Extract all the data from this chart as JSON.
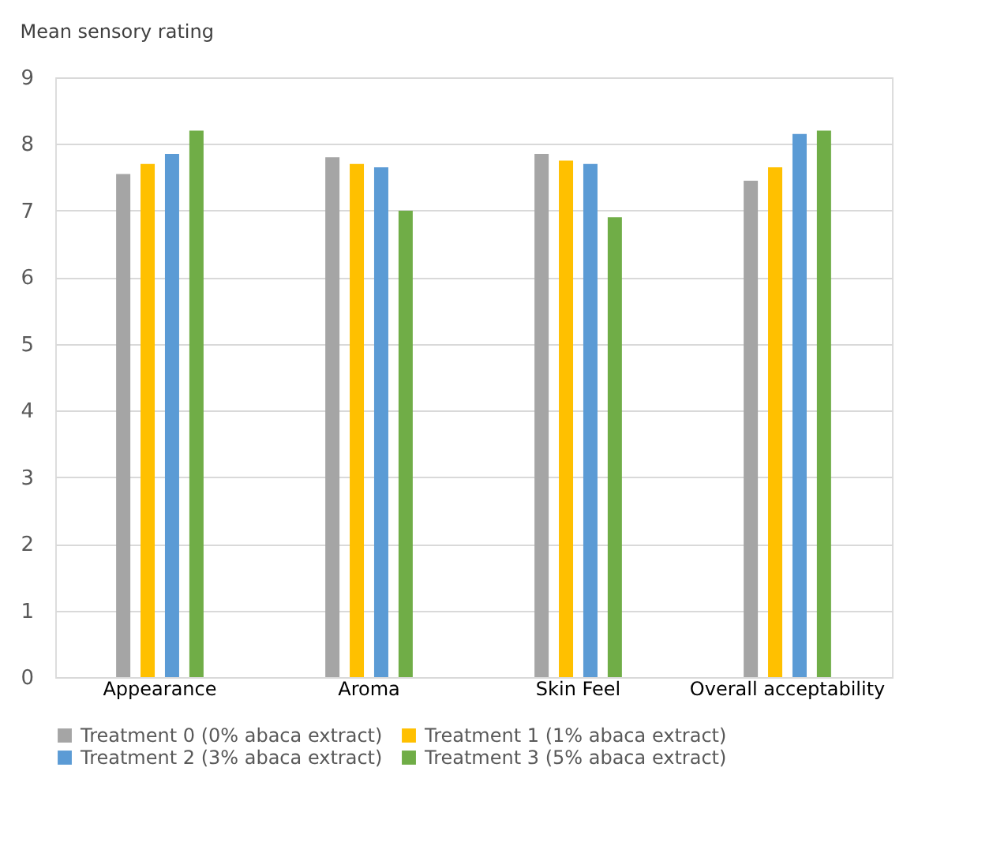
{
  "chart_data": {
    "type": "bar",
    "title": "Mean sensory rating",
    "categories": [
      "Appearance",
      "Aroma",
      "Skin Feel",
      "Overall acceptability"
    ],
    "series": [
      {
        "name": "Treatment 0 (0% abaca extract)",
        "color": "#a5a5a5",
        "values": [
          7.55,
          7.8,
          7.85,
          7.45
        ]
      },
      {
        "name": "Treatment 1 (1% abaca extract)",
        "color": "#ffc000",
        "values": [
          7.7,
          7.7,
          7.75,
          7.65
        ]
      },
      {
        "name": "Treatment 2 (3% abaca extract)",
        "color": "#5b9bd5",
        "values": [
          7.85,
          7.65,
          7.7,
          8.15
        ]
      },
      {
        "name": "Treatment 3 (5% abaca extract)",
        "color": "#70ad47",
        "values": [
          8.2,
          7.0,
          6.9,
          8.2
        ]
      }
    ],
    "ylim": [
      0,
      9
    ],
    "yticks": [
      0,
      1,
      2,
      3,
      4,
      5,
      6,
      7,
      8,
      9
    ],
    "grid": "y",
    "legend": "bottom"
  }
}
